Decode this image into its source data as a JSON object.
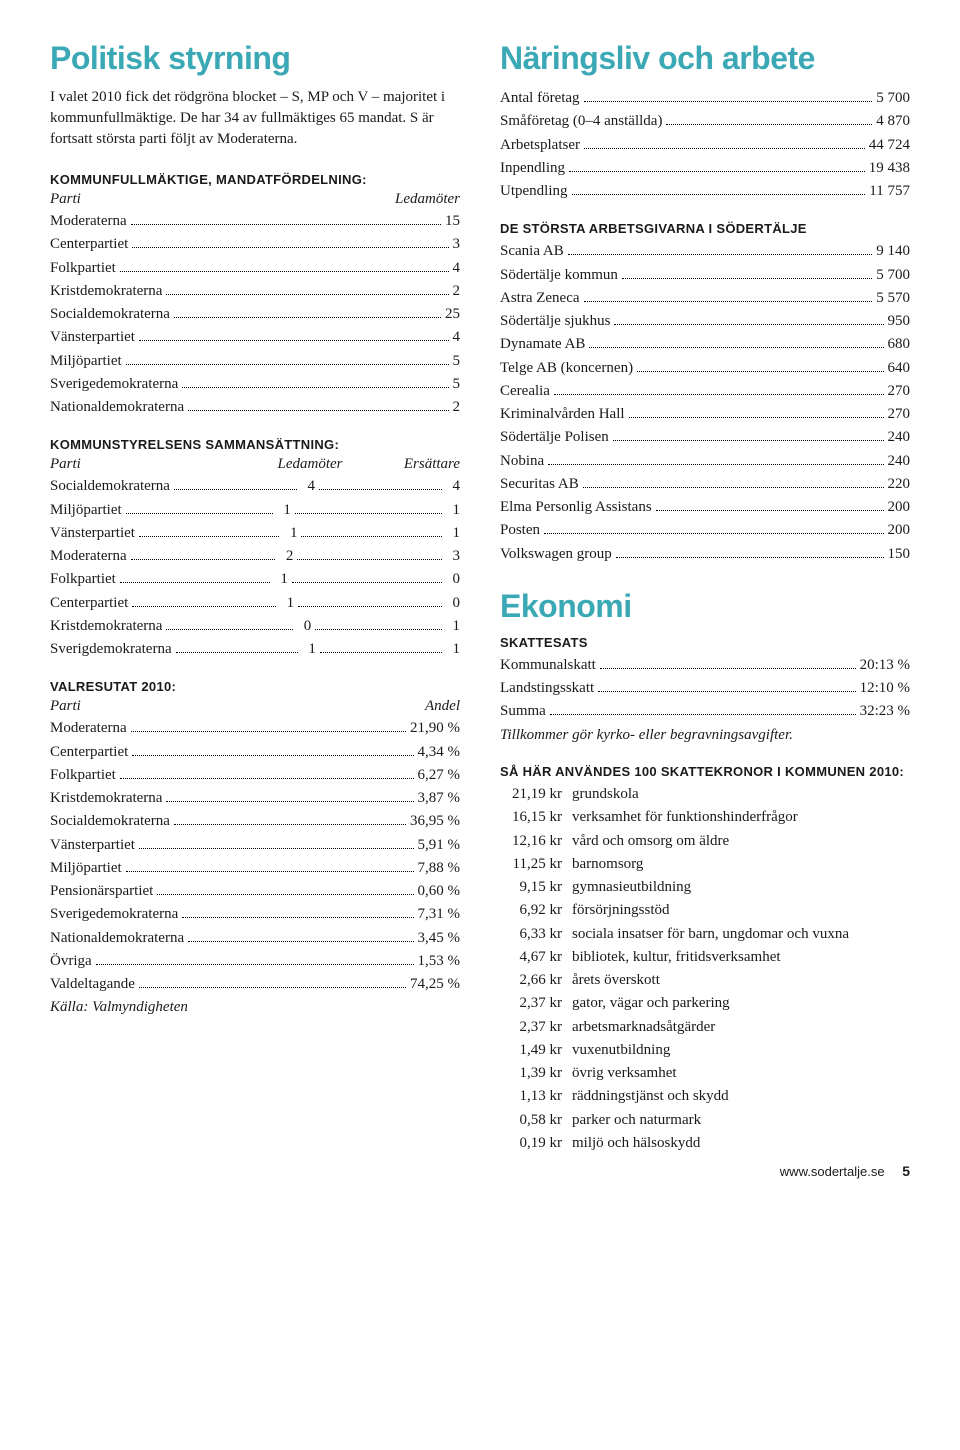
{
  "left": {
    "title": "Politisk styrning",
    "intro": "I valet 2010 fick det rödgröna blocket – S, MP och V – majoritet i kommunfullmäktige. De har 34 av fullmäktiges 65 mandat. S är fortsatt största parti följt av Moderaterna.",
    "mandat": {
      "heading": "KOMMUNFULLMÄKTIGE, MANDATFÖRDELNING:",
      "h1": "Parti",
      "h2": "Ledamöter",
      "rows": [
        {
          "label": "Moderaterna",
          "val": "15"
        },
        {
          "label": "Centerpartiet",
          "val": "3"
        },
        {
          "label": "Folkpartiet",
          "val": "4"
        },
        {
          "label": "Kristdemokraterna",
          "val": "2"
        },
        {
          "label": "Socialdemokraterna",
          "val": "25"
        },
        {
          "label": "Vänsterpartiet",
          "val": "4"
        },
        {
          "label": "Miljöpartiet",
          "val": "5"
        },
        {
          "label": "Sverigedemokraterna",
          "val": "5"
        },
        {
          "label": "Nationaldemokraterna",
          "val": "2"
        }
      ]
    },
    "styrelse": {
      "heading": "KOMMUNSTYRELSENS SAMMANSÄTTNING:",
      "h1": "Parti",
      "h2": "Ledamöter",
      "h3": "Ersättare",
      "rows": [
        {
          "label": "Socialdemokraterna",
          "v1": "4",
          "v2": "4"
        },
        {
          "label": "Miljöpartiet",
          "v1": "1",
          "v2": "1"
        },
        {
          "label": "Vänsterpartiet",
          "v1": "1",
          "v2": "1"
        },
        {
          "label": "Moderaterna",
          "v1": "2",
          "v2": "3"
        },
        {
          "label": "Folkpartiet",
          "v1": "1",
          "v2": "0"
        },
        {
          "label": "Centerpartiet",
          "v1": "1",
          "v2": "0"
        },
        {
          "label": "Kristdemokraterna",
          "v1": "0",
          "v2": "1"
        },
        {
          "label": "Sverigdemokraterna",
          "v1": "1",
          "v2": "1"
        }
      ]
    },
    "valresultat": {
      "heading": "VALRESUTAT 2010:",
      "h1": "Parti",
      "h2": "Andel",
      "rows": [
        {
          "label": "Moderaterna",
          "val": "21,90 %"
        },
        {
          "label": "Centerpartiet",
          "val": "4,34 %"
        },
        {
          "label": "Folkpartiet",
          "val": "6,27 %"
        },
        {
          "label": "Kristdemokraterna",
          "val": "3,87 %"
        },
        {
          "label": "Socialdemokraterna",
          "val": "36,95 %"
        },
        {
          "label": "Vänsterpartiet",
          "val": "5,91 %"
        },
        {
          "label": "Miljöpartiet",
          "val": "7,88 %"
        },
        {
          "label": "Pensionärspartiet",
          "val": "0,60 %"
        },
        {
          "label": "Sverigedemokraterna",
          "val": "7,31 %"
        },
        {
          "label": "Nationaldemokraterna",
          "val": "3,45 %"
        },
        {
          "label": "Övriga",
          "val": "1,53 %"
        },
        {
          "label": "Valdeltagande",
          "val": "74,25 %"
        }
      ],
      "source": "Källa: Valmyndigheten"
    }
  },
  "right": {
    "title1": "Näringsliv och arbete",
    "stats": {
      "rows": [
        {
          "label": "Antal företag",
          "val": "5 700"
        },
        {
          "label": "Småföretag (0–4 anställda)",
          "val": "4 870"
        },
        {
          "label": "Arbetsplatser",
          "val": "44 724"
        },
        {
          "label": "Inpendling",
          "val": "19 438"
        },
        {
          "label": "Utpendling",
          "val": "11 757"
        }
      ]
    },
    "employers": {
      "heading": "DE STÖRSTA ARBETSGIVARNA I SÖDERTÄLJE",
      "rows": [
        {
          "label": "Scania AB",
          "val": "9 140"
        },
        {
          "label": "Södertälje kommun",
          "val": "5 700"
        },
        {
          "label": "Astra Zeneca",
          "val": "5 570"
        },
        {
          "label": "Södertälje sjukhus",
          "val": "950"
        },
        {
          "label": "Dynamate AB",
          "val": "680"
        },
        {
          "label": "Telge AB (koncernen)",
          "val": "640"
        },
        {
          "label": "Cerealia",
          "val": "270"
        },
        {
          "label": "Kriminalvården Hall",
          "val": "270"
        },
        {
          "label": "Södertälje Polisen",
          "val": "240"
        },
        {
          "label": "Nobina",
          "val": "240"
        },
        {
          "label": "Securitas AB",
          "val": "220"
        },
        {
          "label": "Elma Personlig Assistans",
          "val": "200"
        },
        {
          "label": "Posten",
          "val": "200"
        },
        {
          "label": "Volkswagen group",
          "val": "150"
        }
      ]
    },
    "title2": "Ekonomi",
    "skattesats": {
      "heading": "SKATTESATS",
      "rows": [
        {
          "label": "Kommunalskatt",
          "val": "20:13 %"
        },
        {
          "label": "Landstingsskatt",
          "val": "12:10 %"
        },
        {
          "label": "Summa",
          "val": "32:23 %"
        }
      ],
      "note": "Tillkommer gör kyrko- eller begravningsavgifter."
    },
    "budget": {
      "heading": "SÅ HÄR ANVÄNDES 100 SKATTEKRONOR I KOMMUNEN 2010:",
      "rows": [
        {
          "amt": "21,19 kr",
          "desc": "grundskola"
        },
        {
          "amt": "16,15 kr",
          "desc": "verksamhet för funktionshinderfrågor"
        },
        {
          "amt": "12,16 kr",
          "desc": "vård och omsorg om äldre"
        },
        {
          "amt": "11,25 kr",
          "desc": "barnomsorg"
        },
        {
          "amt": "9,15 kr",
          "desc": "gymnasieutbildning"
        },
        {
          "amt": "6,92 kr",
          "desc": "försörjningsstöd"
        },
        {
          "amt": "6,33 kr",
          "desc": "sociala insatser för barn, ungdomar och vuxna"
        },
        {
          "amt": "4,67 kr",
          "desc": "bibliotek, kultur, fritidsverksamhet"
        },
        {
          "amt": "2,66 kr",
          "desc": "årets överskott"
        },
        {
          "amt": "2,37 kr",
          "desc": "gator, vägar och parkering"
        },
        {
          "amt": "2,37 kr",
          "desc": "arbetsmarknadsåtgärder"
        },
        {
          "amt": "1,49 kr",
          "desc": "vuxenutbildning"
        },
        {
          "amt": "1,39 kr",
          "desc": "övrig verksamhet"
        },
        {
          "amt": "1,13 kr",
          "desc": "räddningstjänst och skydd"
        },
        {
          "amt": "0,58 kr",
          "desc": "parker och naturmark"
        },
        {
          "amt": "0,19 kr",
          "desc": "miljö och hälsoskydd"
        }
      ]
    }
  },
  "footer": {
    "url": "www.sodertalje.se",
    "page": "5"
  }
}
